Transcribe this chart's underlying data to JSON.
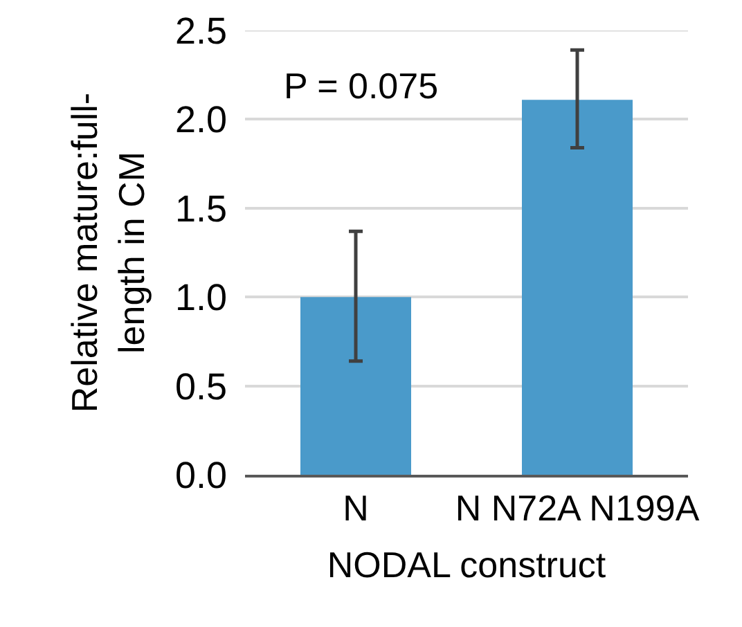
{
  "chart_data": {
    "type": "bar",
    "xlabel": "NODAL construct",
    "ylabel": "Relative mature:full-\nlength in CM",
    "categories": [
      "N",
      "N N72A N199A"
    ],
    "values": [
      1.0,
      2.11
    ],
    "color": "#4a9aca",
    "errors": [
      [
        0.64,
        1.37
      ],
      [
        1.84,
        2.39
      ]
    ],
    "ylim": [
      0,
      2.5
    ],
    "yticks": [
      {
        "value": 0,
        "label": "0.0"
      },
      0.5,
      {
        "value": 1,
        "label": "1.0"
      },
      1.5,
      {
        "value": 2,
        "label": "2.0"
      },
      2.5
    ],
    "grid": "y",
    "annotations": [
      "P = 0.075"
    ]
  }
}
